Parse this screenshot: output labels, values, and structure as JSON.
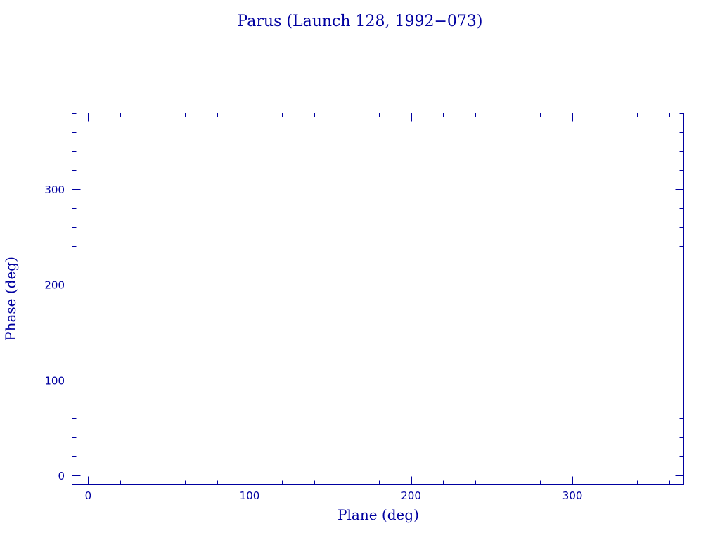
{
  "chart_data": {
    "type": "scatter",
    "title": "Parus (Launch 128, 1992−073)",
    "xlabel": "Plane (deg)",
    "ylabel": "Phase (deg)",
    "xlim": [
      -10,
      369
    ],
    "ylim": [
      -10,
      380
    ],
    "xticks": [
      0,
      100,
      200,
      300
    ],
    "yticks": [
      0,
      100,
      200,
      300
    ],
    "x_minor_step": 20,
    "y_minor_step": 20,
    "grid": false,
    "series": [
      {
        "x": [],
        "y": []
      }
    ],
    "color": "#0000a0"
  }
}
